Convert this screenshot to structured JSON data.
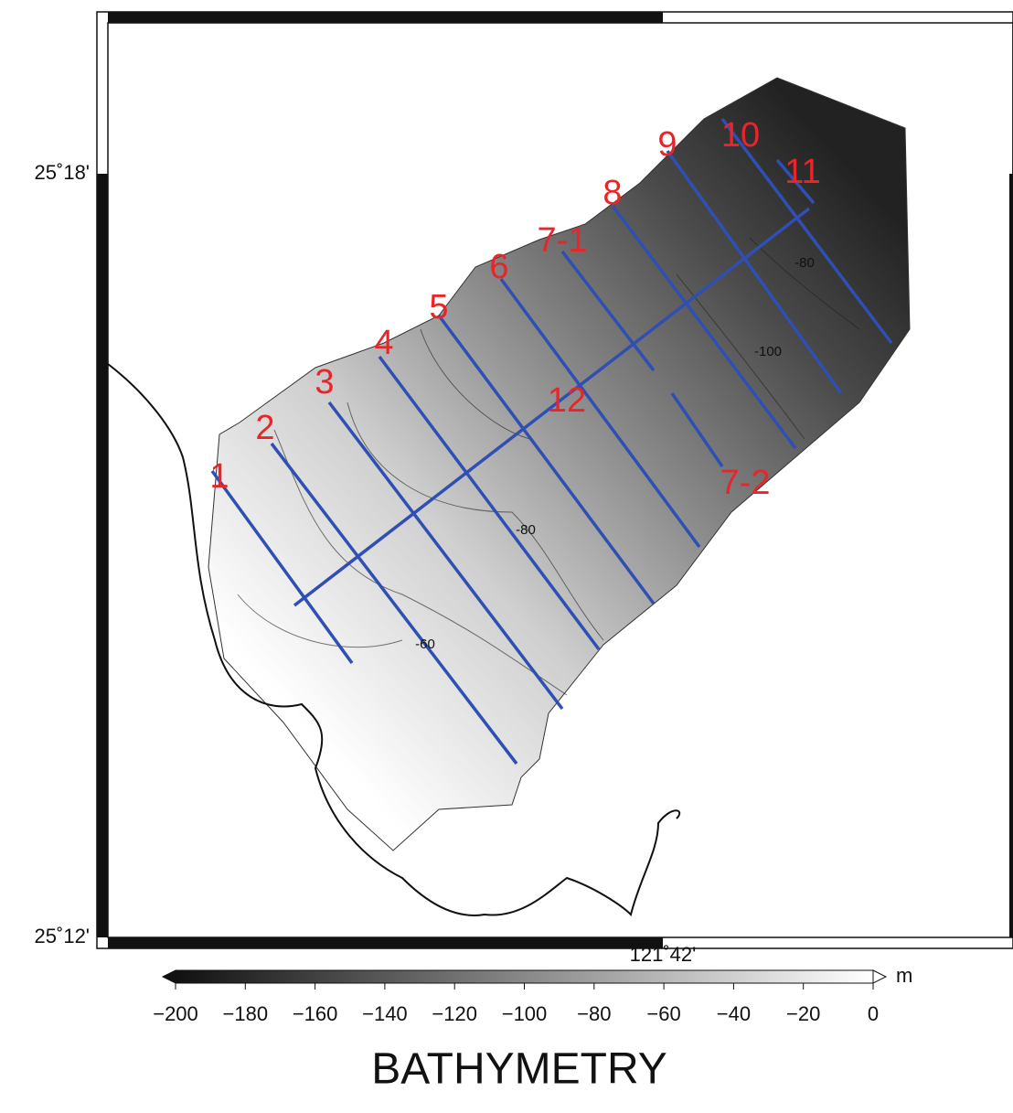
{
  "map": {
    "lat_labels": [
      "25˚18'",
      "25˚12'"
    ],
    "lon_labels": [
      "121˚42'"
    ],
    "profile_labels": [
      "1",
      "2",
      "3",
      "4",
      "5",
      "6",
      "7-1",
      "7-2",
      "8",
      "9",
      "10",
      "11",
      "12"
    ],
    "contour_labels": [
      "-80",
      "-60",
      "-100",
      "-80"
    ]
  },
  "colorbar": {
    "lim": [
      -200,
      0
    ],
    "ticks": [
      {
        "value": -200,
        "label": "−200"
      },
      {
        "value": -180,
        "label": "−180"
      },
      {
        "value": -160,
        "label": "−160"
      },
      {
        "value": -140,
        "label": "−140"
      },
      {
        "value": -120,
        "label": "−120"
      },
      {
        "value": -100,
        "label": "−100"
      },
      {
        "value": -80,
        "label": "−80"
      },
      {
        "value": -60,
        "label": "−60"
      },
      {
        "value": -40,
        "label": "−40"
      },
      {
        "value": -20,
        "label": "−20"
      },
      0
    ],
    "unit": "m",
    "title": "BATHYMETRY"
  }
}
